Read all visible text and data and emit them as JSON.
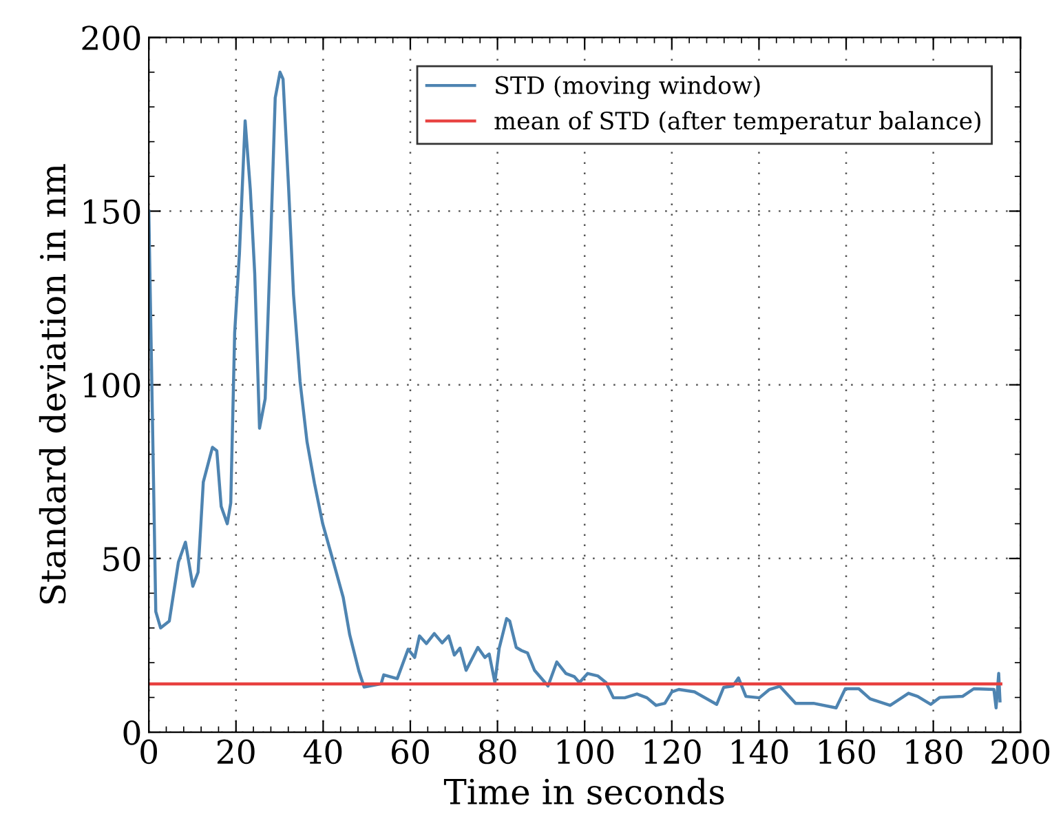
{
  "chart_data": {
    "type": "line",
    "xlabel": "Time in seconds",
    "ylabel": "Standard deviation in nm",
    "xlim": [
      0,
      200
    ],
    "ylim": [
      0,
      200
    ],
    "xticks": [
      0,
      20,
      40,
      60,
      80,
      100,
      120,
      140,
      160,
      180,
      200
    ],
    "yticks": [
      0,
      50,
      100,
      150,
      200
    ],
    "grid": true,
    "legend": "top right",
    "line_style": "solid",
    "marker": "none",
    "series": [
      {
        "name": "STD (moving window)",
        "color": "#4e84b1",
        "x": [
          0,
          1.6,
          2.7,
          4.7,
          6.8,
          8.4,
          10.1,
          11.3,
          12.5,
          14.6,
          15.6,
          16.6,
          18,
          18.8,
          19.7,
          20.8,
          22.1,
          23.3,
          24.3,
          25.4,
          26.7,
          28,
          29,
          30.1,
          30.8,
          32.1,
          33.2,
          34.7,
          36.3,
          38,
          39.9,
          42,
          44.6,
          46.1,
          48.2,
          49.4,
          53.3,
          53.9,
          57,
          59.5,
          61,
          62.1,
          63.7,
          65.5,
          67.3,
          68.8,
          70.1,
          71.4,
          72.8,
          75.5,
          77.1,
          78.1,
          79.4,
          80.4,
          82.1,
          82.8,
          84.3,
          85.5,
          86.9,
          88.5,
          91.6,
          93.6,
          95.7,
          97.6,
          98.8,
          100.7,
          103,
          104.9,
          106.6,
          109.2,
          112,
          114.3,
          116.4,
          118.4,
          120,
          121.6,
          125.2,
          130.3,
          131.9,
          134,
          135.3,
          137,
          140.1,
          142.4,
          144.8,
          148.4,
          152.5,
          157.7,
          159.8,
          162.9,
          165.5,
          170.1,
          174.3,
          176.4,
          179.4,
          181.5,
          186.7,
          189.3,
          193.9,
          194.4,
          195,
          195.3
        ],
        "values": [
          150,
          34.7,
          30,
          32,
          49,
          54.7,
          42,
          46,
          72,
          82,
          81,
          65,
          60,
          66,
          115,
          138,
          176,
          156,
          132,
          87.5,
          96,
          143,
          182.6,
          190,
          188,
          156,
          126,
          101,
          83.6,
          71.7,
          60,
          50.6,
          38.8,
          28,
          17.6,
          13,
          13.9,
          16.5,
          15.4,
          23.9,
          21.5,
          27.7,
          25.5,
          28.4,
          25.7,
          27.7,
          22.2,
          24.2,
          17.8,
          24.4,
          21.5,
          22.5,
          14.3,
          24.2,
          32.7,
          32,
          24.4,
          23.5,
          22.8,
          17.8,
          13.3,
          20.2,
          16.9,
          16,
          14.3,
          16.9,
          16.2,
          14.3,
          9.9,
          9.9,
          11,
          9.9,
          7.7,
          8.3,
          11.6,
          12.3,
          11.6,
          8,
          12.9,
          13.3,
          15.6,
          10.3,
          9.9,
          12.3,
          13.2,
          8.3,
          8.3,
          7,
          12.5,
          12.5,
          9.6,
          7.7,
          11.2,
          10.3,
          8,
          10,
          10.3,
          12.5,
          12.3,
          7,
          16.9,
          9
        ]
      },
      {
        "name": "mean of STD (after temperatur balance)",
        "color": "#e8403f",
        "x": [
          0,
          195.5
        ],
        "values": [
          13.9,
          13.9
        ]
      }
    ]
  }
}
